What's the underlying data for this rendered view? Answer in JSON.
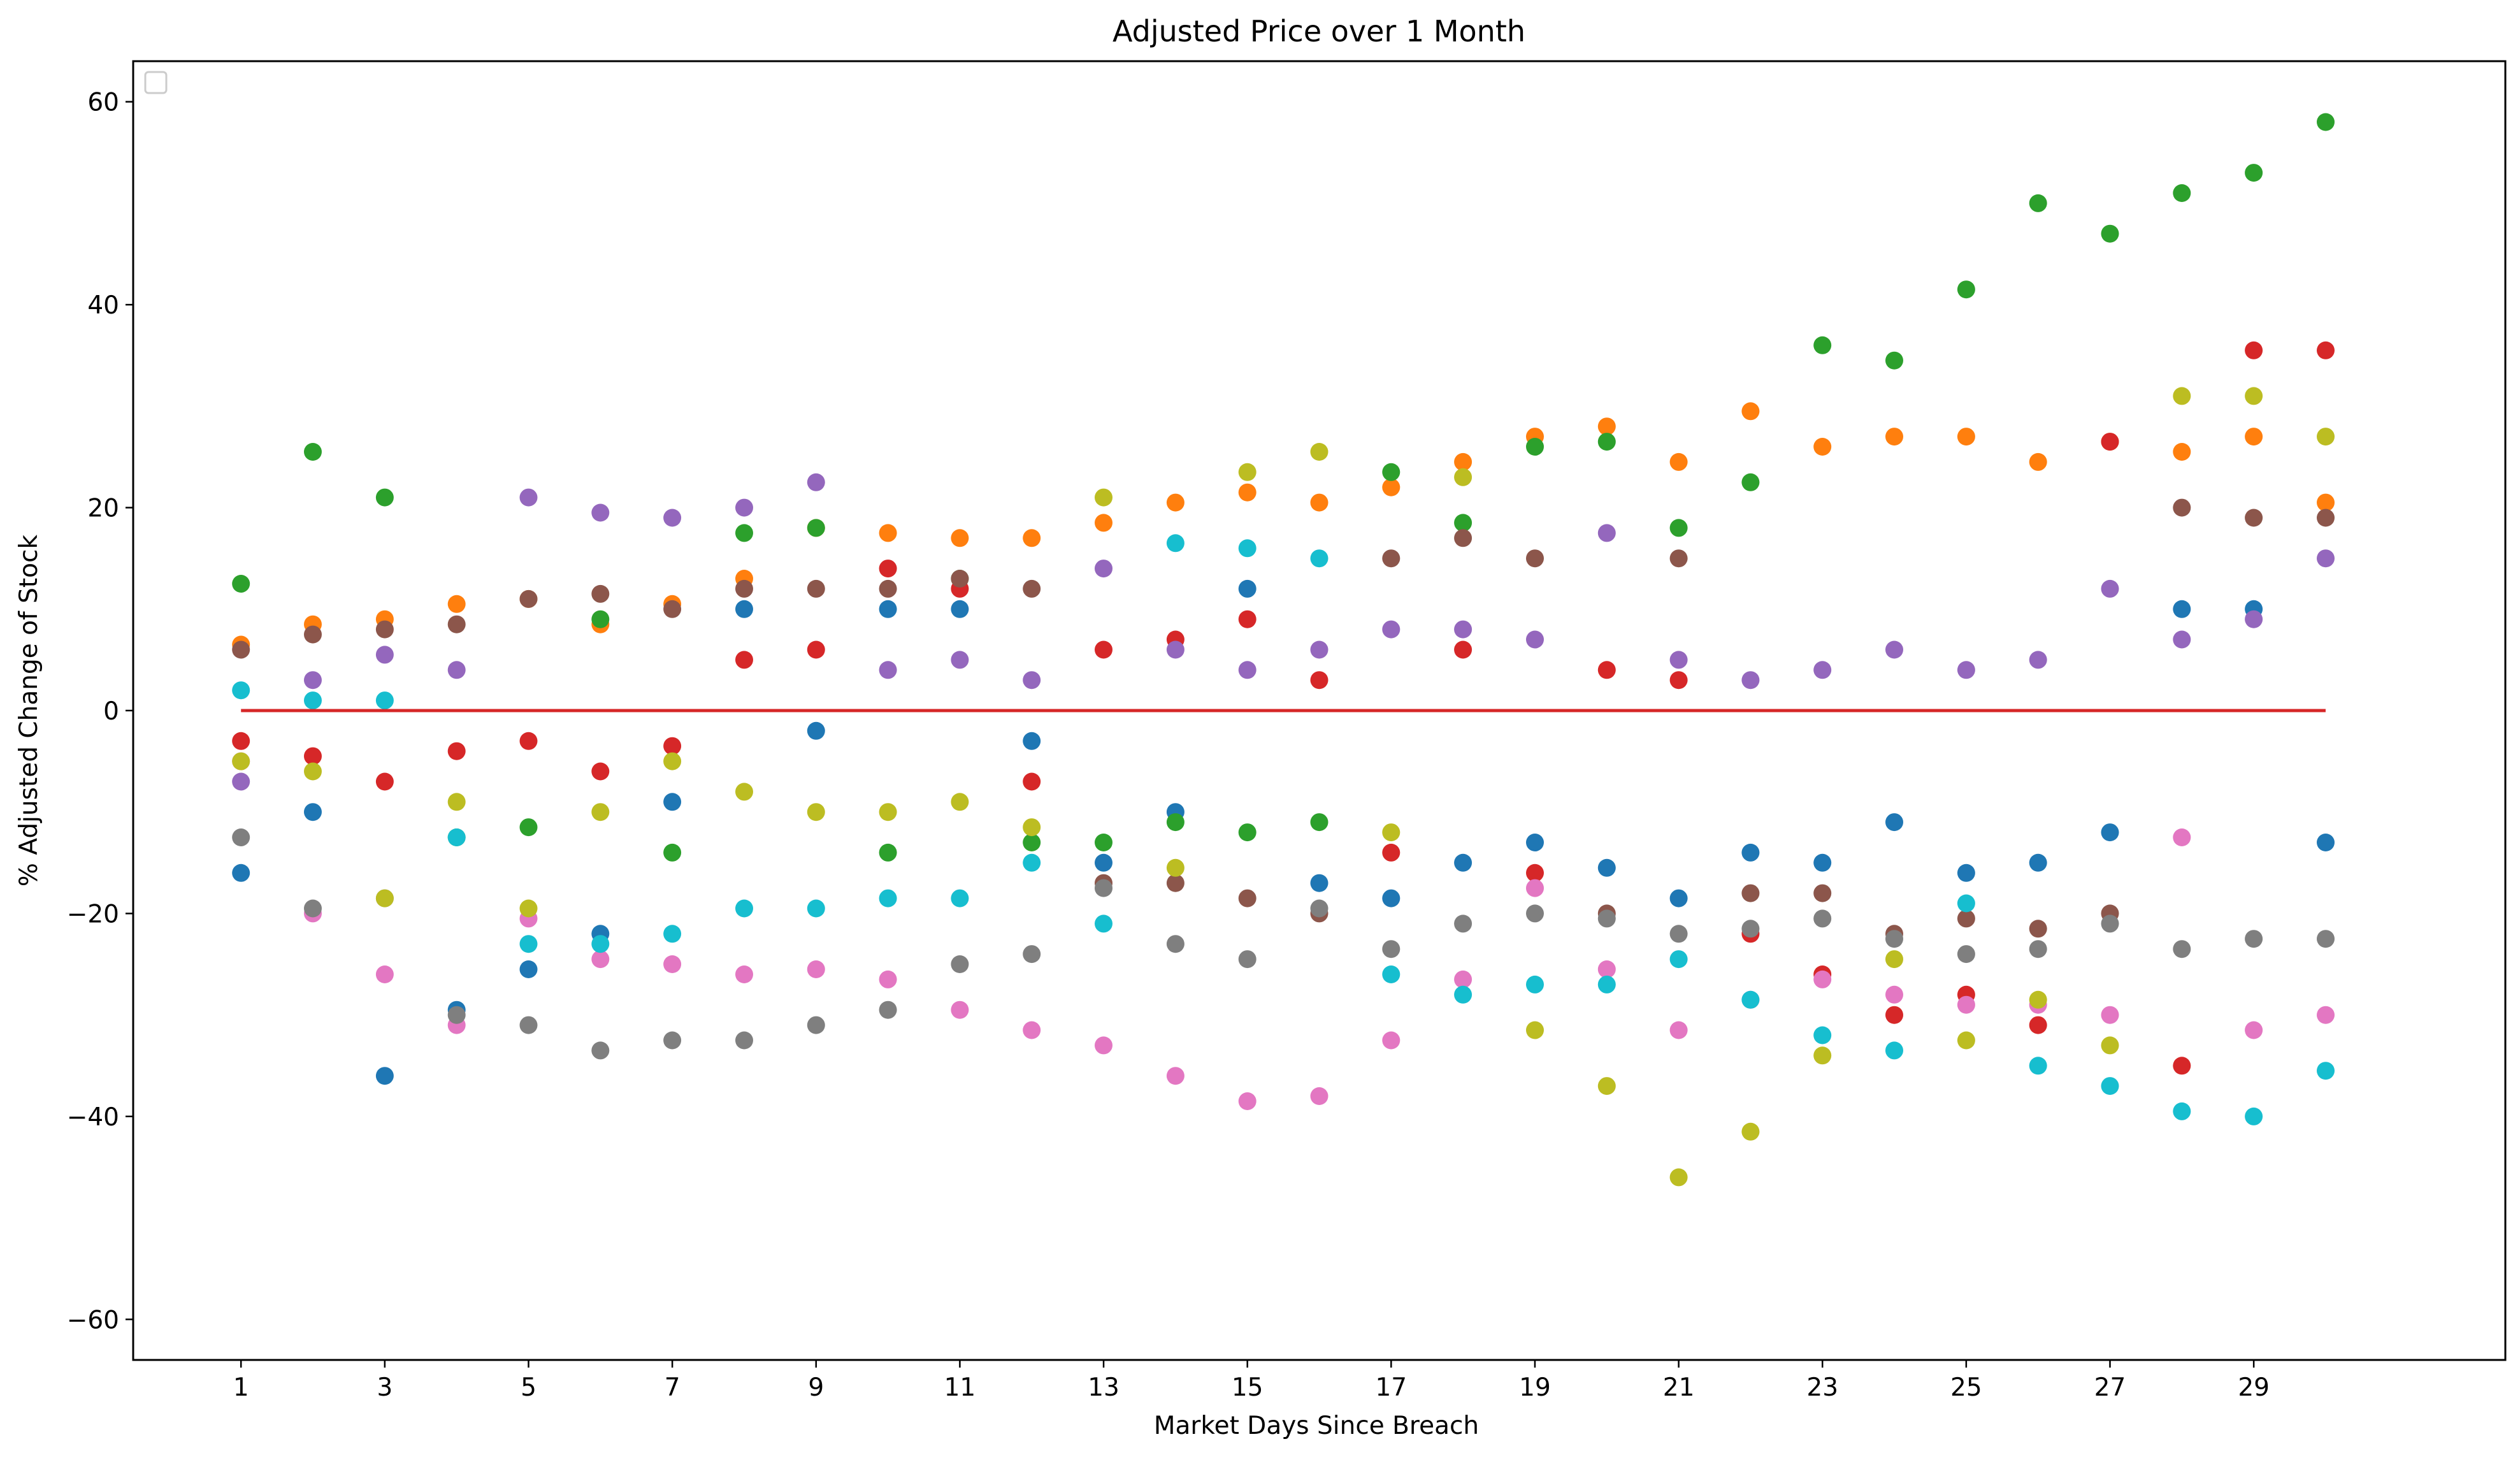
{
  "chart_data": {
    "type": "scatter",
    "title": "Adjusted Price over 1 Month",
    "xlabel": "Market Days Since Breach",
    "ylabel": "% Adjusted Change of Stock",
    "xlim": [
      -0.5,
      32.5
    ],
    "ylim": [
      -64,
      64
    ],
    "x_ticks": [
      1,
      3,
      5,
      7,
      9,
      11,
      13,
      15,
      17,
      19,
      21,
      23,
      25,
      27,
      29
    ],
    "x_tick_labels": [
      "1",
      "3",
      "5",
      "7",
      "9",
      "11",
      "13",
      "15",
      "17",
      "19",
      "21",
      "23",
      "25",
      "27",
      "29"
    ],
    "y_ticks": [
      -60,
      -40,
      -20,
      0,
      20,
      40,
      60
    ],
    "y_tick_labels": [
      "−60",
      "−40",
      "−20",
      "0",
      "20",
      "40",
      "60"
    ],
    "grid": false,
    "legend": "top-left (empty)",
    "reference_line": {
      "y": 0,
      "x_range": [
        1,
        30
      ],
      "color": "#d62728"
    },
    "colors": [
      "#1f77b4",
      "#ff7f0e",
      "#2ca02c",
      "#d62728",
      "#9467bd",
      "#8c564b",
      "#e377c2",
      "#7f7f7f",
      "#bcbd22",
      "#17becf"
    ],
    "series": [
      {
        "values": [
          -16,
          -10,
          -36,
          -29.5,
          -25.5,
          -22,
          -9,
          10,
          -2,
          10,
          10,
          -3,
          -15,
          -10,
          12,
          -17,
          -18.5,
          -15,
          -13,
          -15.5,
          -18.5,
          -14,
          -15,
          -11,
          -16,
          -15,
          -12,
          10,
          10,
          -13
        ]
      },
      {
        "values": [
          6.5,
          8.5,
          9,
          10.5,
          11,
          8.5,
          10.5,
          13,
          18,
          17.5,
          17,
          17,
          18.5,
          20.5,
          21.5,
          20.5,
          22,
          24.5,
          27,
          28,
          24.5,
          29.5,
          26,
          27,
          27,
          24.5,
          26.5,
          25.5,
          27,
          20.5
        ]
      },
      {
        "values": [
          12.5,
          25.5,
          21,
          -12.5,
          -11.5,
          9,
          -14,
          17.5,
          18,
          -14,
          13,
          -13,
          -13,
          -11,
          -12,
          -11,
          23.5,
          18.5,
          26,
          26.5,
          18,
          22.5,
          36,
          34.5,
          41.5,
          50,
          47,
          51,
          53,
          58
        ]
      },
      {
        "values": [
          -3,
          -4.5,
          -7,
          -4,
          -3,
          -6,
          -3.5,
          5,
          6,
          14,
          12,
          -7,
          6,
          7,
          9,
          3,
          -14,
          6,
          -16,
          4,
          3,
          -22,
          -26,
          -30,
          -28,
          -31,
          26.5,
          -35,
          35.5,
          35.5
        ]
      },
      {
        "values": [
          -7,
          3,
          5.5,
          4,
          21,
          19.5,
          19,
          20,
          22.5,
          4,
          5,
          3,
          14,
          6,
          4,
          6,
          8,
          8,
          7,
          17.5,
          5,
          3,
          4,
          6,
          4,
          5,
          12,
          7,
          9,
          15
        ]
      },
      {
        "values": [
          6,
          7.5,
          8,
          8.5,
          11,
          11.5,
          10,
          12,
          12,
          12,
          13,
          12,
          -17,
          -17,
          -18.5,
          -20,
          15,
          17,
          15,
          -20,
          15,
          -18,
          -18,
          -22,
          -20.5,
          -21.5,
          -20,
          20,
          19,
          19
        ]
      },
      {
        "values": [
          -5,
          -20,
          -26,
          -31,
          -20.5,
          -24.5,
          -25,
          -26,
          -25.5,
          -26.5,
          -29.5,
          -31.5,
          -33,
          -36,
          -38.5,
          -38,
          -32.5,
          -26.5,
          -17.5,
          -25.5,
          -31.5,
          -28.5,
          -26.5,
          -28,
          -29,
          -29,
          -30,
          -12.5,
          -31.5,
          -30
        ]
      },
      {
        "values": [
          -12.5,
          -19.5,
          -18.5,
          -30,
          -31,
          -33.5,
          -32.5,
          -32.5,
          -31,
          -29.5,
          -25,
          -24,
          -17.5,
          -23,
          -24.5,
          -19.5,
          -23.5,
          -21,
          -20,
          -20.5,
          -22,
          -21.5,
          -20.5,
          -22.5,
          -24,
          -23.5,
          -21,
          -23.5,
          -22.5,
          -22.5
        ]
      },
      {
        "values": [
          -5,
          -6,
          -18.5,
          -9,
          -19.5,
          -10,
          -5,
          -8,
          -10,
          -10,
          -9,
          -11.5,
          21,
          -15.5,
          23.5,
          25.5,
          -12,
          23,
          -31.5,
          -37,
          -46,
          -41.5,
          -34,
          -24.5,
          -32.5,
          -28.5,
          -33,
          31,
          31,
          27
        ]
      },
      {
        "values": [
          2,
          1,
          1,
          -12.5,
          -23,
          -23,
          -22,
          -19.5,
          -19.5,
          -18.5,
          -18.5,
          -15,
          -21,
          16.5,
          16,
          15,
          -26,
          -28,
          -27,
          -27,
          -24.5,
          -28.5,
          -32,
          -33.5,
          -19,
          -35,
          -37,
          -39.5,
          -40,
          -35.5
        ]
      }
    ]
  }
}
